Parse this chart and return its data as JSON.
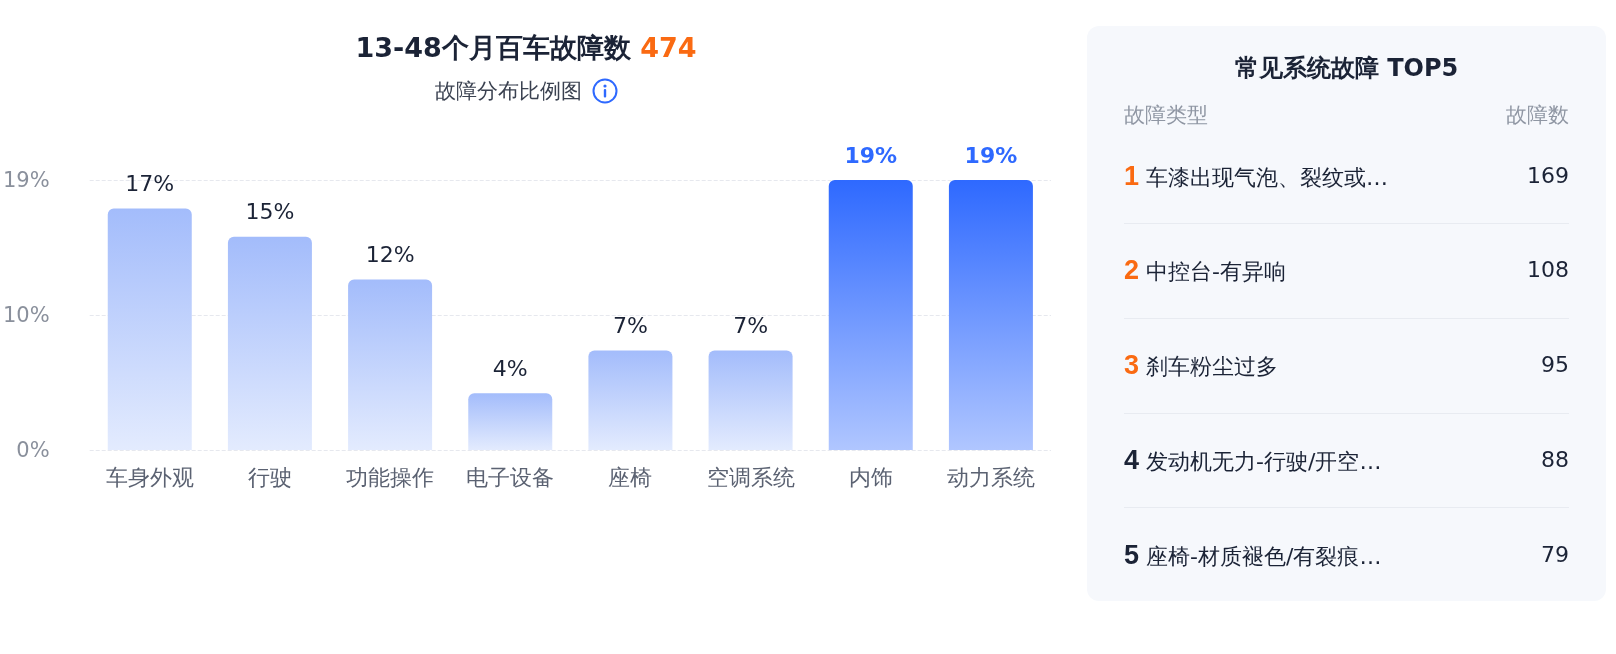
{
  "chart_data": [
    {
      "type": "bar",
      "title": "13-48个月百车故障数 474",
      "subtitle": "故障分布比例图",
      "categories": [
        "车身外观",
        "行驶",
        "功能操作",
        "电子设备",
        "座椅",
        "空调系统",
        "内饰",
        "动力系统"
      ],
      "values": [
        17,
        15,
        12,
        4,
        7,
        7,
        19,
        19
      ],
      "value_labels": [
        "17%",
        "15%",
        "12%",
        "4%",
        "7%",
        "7%",
        "19%",
        "19%"
      ],
      "colors": [
        "#a3bcfb",
        "#a3bcfb",
        "#a3bcfb",
        "#a3bcfb",
        "#a3bcfb",
        "#a3bcfb",
        "#2e69ff",
        "#2e69ff"
      ],
      "ylim": [
        0,
        19
      ],
      "yticks": [
        {
          "value": 0,
          "label": "0%"
        },
        {
          "value": 9.5,
          "label": "10%"
        },
        {
          "value": 19,
          "label": "19%"
        }
      ],
      "grid": "y"
    },
    {
      "type": "other",
      "title": "常见系统故障 TOP5",
      "annotations": [
        "故障类型",
        "故障数",
        "1 车漆出现气泡、裂纹或…",
        "169",
        "2 中控台-有异响",
        "108",
        "3 刹车粉尘过多",
        "95",
        "4 发动机无力-行驶/开空…",
        "88",
        "5 座椅-材质褪色/有裂痕…",
        "79"
      ],
      "colors": [
        "#fa6a12",
        "#fa6a12",
        "#fa6a12",
        "#1b2336",
        "#1b2336"
      ]
    }
  ]
}
